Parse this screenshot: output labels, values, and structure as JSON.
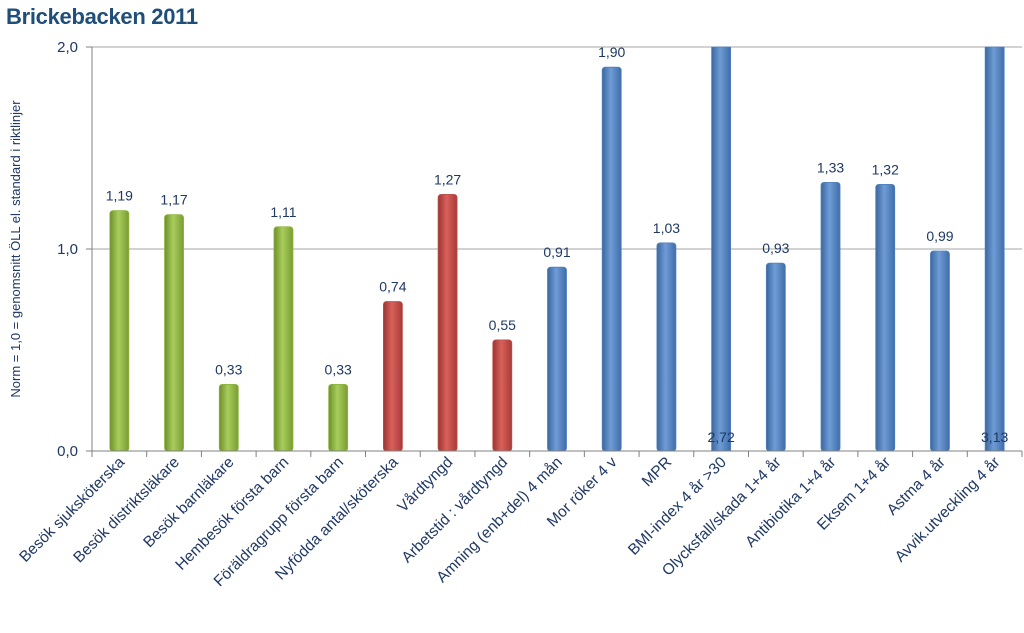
{
  "chart_data": {
    "type": "bar",
    "title": "Brickebacken 2011",
    "xlabel": "",
    "ylabel": "Norm = 1,0 = genomsnitt ÖLL el. standard i riktlinjer",
    "ylim": [
      0,
      2.0
    ],
    "yticks": [
      "0,0",
      "1,0",
      "2,0"
    ],
    "grid": true,
    "categories": [
      "Besök sjuksköterska",
      "Besök distriktsläkare",
      "Besök barnläkare",
      "Hembesök första barn",
      "Föräldragrupp första barn",
      "Nyfödda antal/sköterska",
      "Vårdtyngd",
      "Arbetstid : vårdtyngd",
      "Amning (enb+del) 4 mån",
      "Mor röker 4 v",
      "MPR",
      "BMI-index 4 år >30",
      "Olycksfall/skada 1+4 år",
      "Antibiotika 1+4 år",
      "Eksem 1+4 år",
      "Astma 4 år",
      "Avvik.utveckling 4 år"
    ],
    "values": [
      1.19,
      1.17,
      0.33,
      1.11,
      0.33,
      0.74,
      1.27,
      0.55,
      0.91,
      1.9,
      1.03,
      2.72,
      0.93,
      1.33,
      1.32,
      0.99,
      3.13
    ],
    "value_labels": [
      "1,19",
      "1,17",
      "0,33",
      "1,11",
      "0,33",
      "0,74",
      "1,27",
      "0,55",
      "0,91",
      "1,90",
      "1,03",
      "2,72",
      "0,93",
      "1,33",
      "1,32",
      "0,99",
      "3,13"
    ],
    "bar_colors": [
      "green",
      "green",
      "green",
      "green",
      "green",
      "red",
      "red",
      "red",
      "blue",
      "blue",
      "blue",
      "blue",
      "blue",
      "blue",
      "blue",
      "blue",
      "blue"
    ],
    "colors": {
      "green": "#8db43f",
      "red": "#c0504d",
      "blue": "#4f81bd",
      "axis_text": "#1f3864",
      "gridline": "#a6a6a6"
    }
  }
}
